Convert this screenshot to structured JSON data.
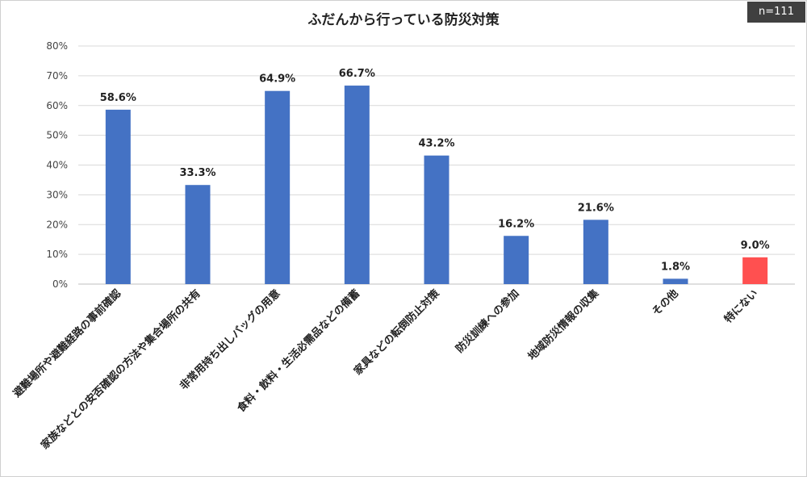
{
  "badge": "n=111",
  "chart_data": {
    "type": "bar",
    "title": "ふだんから行っている防災対策",
    "categories": [
      "避難場所や避難経路の事前確認",
      "家族などとの安否確認の方法や集合場所の共有",
      "非常用持ち出しバッグの用意",
      "食料・飲料・生活必需品などの備蓄",
      "家具などの転倒防止対策",
      "防災訓練への参加",
      "地域防災情報の収集",
      "その他",
      "特にない"
    ],
    "values": [
      58.6,
      33.3,
      64.9,
      66.7,
      43.2,
      16.2,
      21.6,
      1.8,
      9.0
    ],
    "data_labels": [
      "58.6%",
      "33.3%",
      "64.9%",
      "66.7%",
      "43.2%",
      "16.2%",
      "21.6%",
      "1.8%",
      "9.0%"
    ],
    "bar_colors": [
      "#4472C4",
      "#4472C4",
      "#4472C4",
      "#4472C4",
      "#4472C4",
      "#4472C4",
      "#4472C4",
      "#4472C4",
      "#FF5050"
    ],
    "y_ticks": [
      0,
      10,
      20,
      30,
      40,
      50,
      60,
      70,
      80
    ],
    "y_tick_labels": [
      "0%",
      "10%",
      "20%",
      "30%",
      "40%",
      "50%",
      "60%",
      "70%",
      "80%"
    ],
    "ylim": [
      0,
      80
    ],
    "grid": true,
    "legend": "none"
  }
}
